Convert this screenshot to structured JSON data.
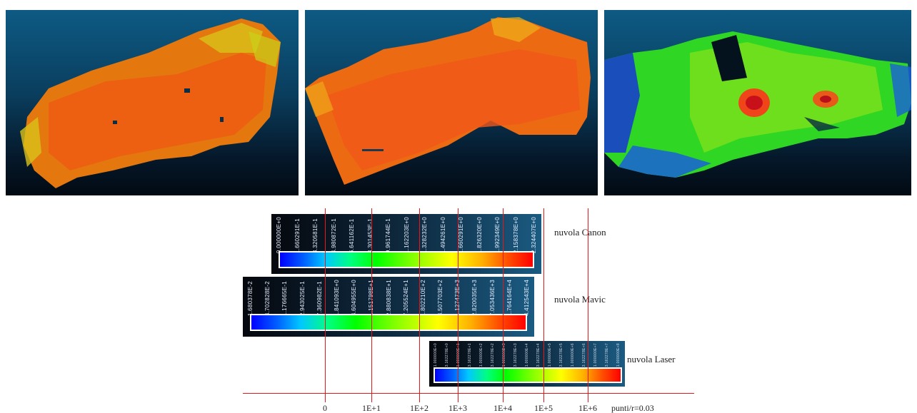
{
  "colors": {
    "panel_sky": "#0d5a84",
    "cloud_orange": "#f26a12",
    "cloud_yellow": "#f5d416",
    "reference_line": "#e31a1c"
  },
  "panels": [
    {
      "name": "point-cloud-canon"
    },
    {
      "name": "point-cloud-mavic"
    },
    {
      "name": "point-cloud-laser"
    }
  ],
  "scales": [
    {
      "label": "nuvola Canon",
      "ticks": [
        "0.000000E+0",
        "1.660291E-1",
        "3.320581E-1",
        "4.980872E-1",
        "6.641162E-1",
        "8.301453E-1",
        "9.961744E-1",
        "1.162203E+0",
        "1.328232E+0",
        "1.494261E+0",
        "1.660291E+0",
        "1.826320E+0",
        "1.992349E+0",
        "2.158378E+0",
        "2.324407E+0"
      ]
    },
    {
      "label": "nuvola Mavic",
      "ticks": [
        "1.680378E-2",
        "4.702828E-2",
        "1.176665E-1",
        "2.943025E-1",
        "7.360982E-1",
        "1.841093E+0",
        "4.604955E+0",
        "1.151798E+1",
        "2.880838E+1",
        "7.205524E+1",
        "1.802210E+2",
        "4.507703E+2",
        "1.127473E+3",
        "2.820035E+3",
        "7.053436E+3",
        "1.764164E+4",
        "4.412543E+4"
      ]
    },
    {
      "label": "nuvola Laser",
      "ticks": [
        "1.000000E+0",
        "3.162278E+0",
        "1.000000E+1",
        "3.162278E+1",
        "1.000000E+2",
        "3.162278E+2",
        "1.000000E+3",
        "3.162278E+3",
        "1.000000E+4",
        "3.162278E+4",
        "1.000000E+5",
        "3.162278E+5",
        "1.000000E+6",
        "3.162278E+6",
        "1.000000E+7",
        "3.162278E+7",
        "1.000000E+8"
      ]
    }
  ],
  "axis": {
    "ticks": [
      "0",
      "1E+1",
      "1E+2",
      "1E+3",
      "1E+4",
      "1E+5",
      "1E+6"
    ],
    "unit": "punti/r=0.03"
  }
}
